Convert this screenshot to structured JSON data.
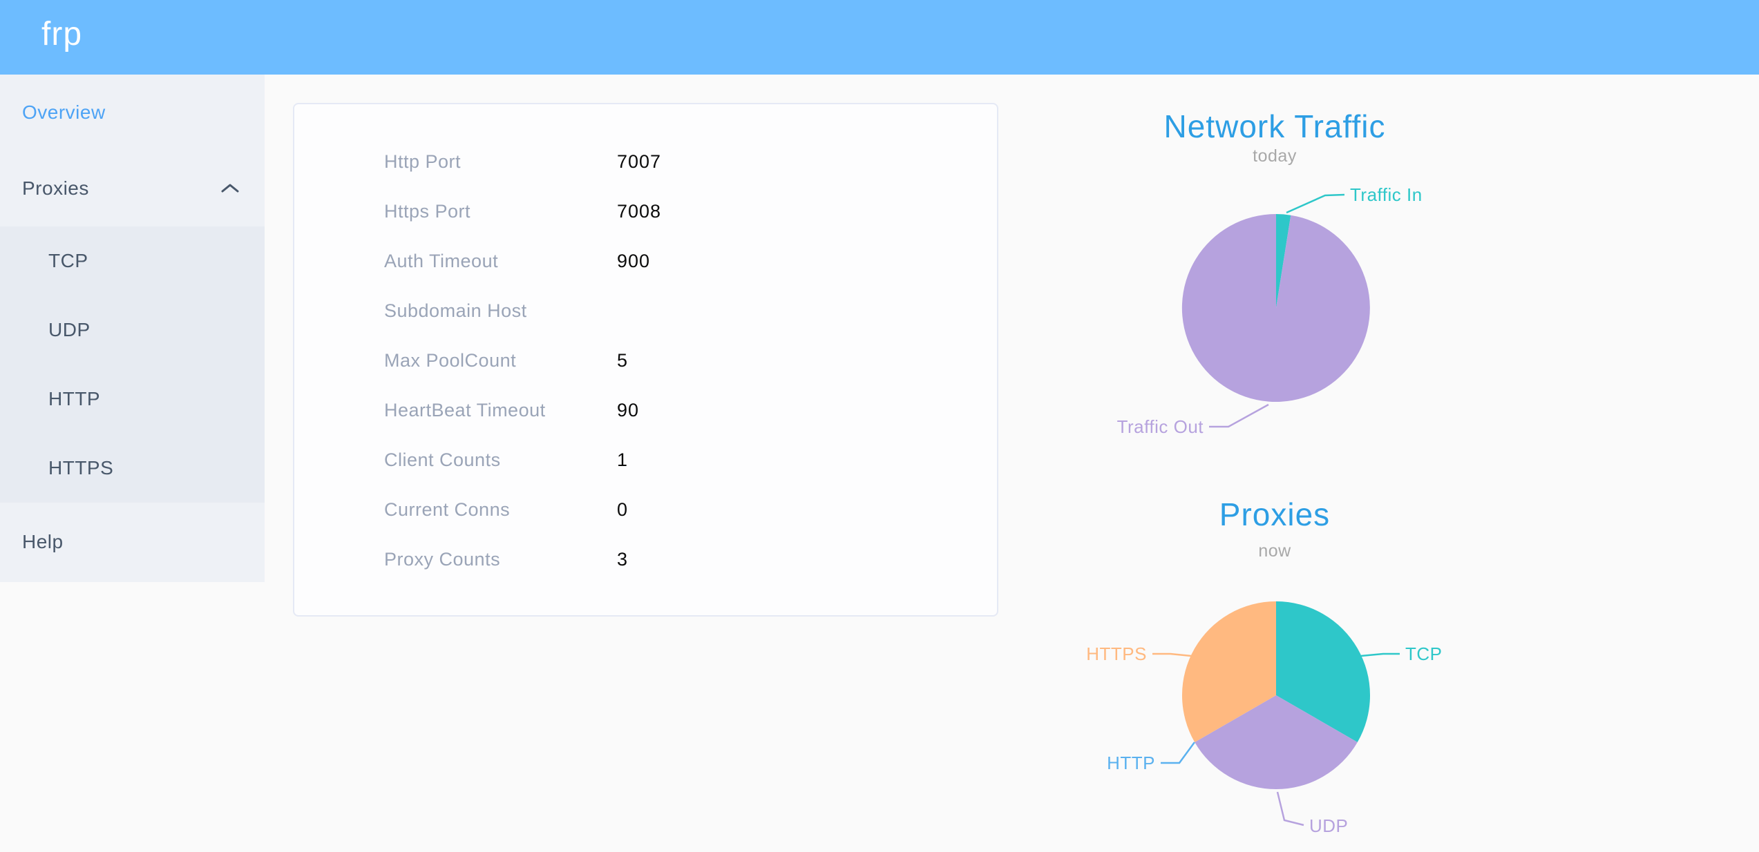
{
  "header": {
    "logo": "frp"
  },
  "colors": {
    "header_bg": "#6dbcff",
    "sidebar_bg": "#eef1f6",
    "submenu_bg": "#e7ebf2",
    "active_item": "#4da3f5",
    "chart_title": "#2d9ee4",
    "teal": "#2EC7C9",
    "purple": "#B6A2DE",
    "blue": "#5AB1EF",
    "orange": "#FFB980"
  },
  "sidebar": {
    "items": [
      {
        "label": "Overview",
        "active": true
      },
      {
        "label": "Proxies",
        "expanded": true,
        "children": [
          "TCP",
          "UDP",
          "HTTP",
          "HTTPS"
        ]
      },
      {
        "label": "Help"
      }
    ]
  },
  "server_info": {
    "rows": [
      {
        "label": "Http Port",
        "value": "7007"
      },
      {
        "label": "Https Port",
        "value": "7008"
      },
      {
        "label": "Auth Timeout",
        "value": "900"
      },
      {
        "label": "Subdomain Host",
        "value": ""
      },
      {
        "label": "Max PoolCount",
        "value": "5"
      },
      {
        "label": "HeartBeat Timeout",
        "value": "90"
      },
      {
        "label": "Client Counts",
        "value": "1"
      },
      {
        "label": "Current Conns",
        "value": "0"
      },
      {
        "label": "Proxy Counts",
        "value": "3"
      }
    ]
  },
  "chart_data": [
    {
      "type": "pie",
      "title": "Network Traffic",
      "subtitle": "today",
      "legend_position": "outside-callout",
      "slices": [
        {
          "label": "Traffic In",
          "percent": 2.5,
          "color": "#2EC7C9"
        },
        {
          "label": "Traffic Out",
          "percent": 97.5,
          "color": "#B6A2DE"
        }
      ]
    },
    {
      "type": "pie",
      "title": "Proxies",
      "subtitle": "now",
      "legend_position": "outside-callout",
      "slices": [
        {
          "label": "TCP",
          "value": 1,
          "percent": 33.3,
          "color": "#2EC7C9"
        },
        {
          "label": "UDP",
          "value": 1,
          "percent": 33.3,
          "color": "#B6A2DE"
        },
        {
          "label": "HTTP",
          "value": 0,
          "percent": 0,
          "color": "#5AB1EF"
        },
        {
          "label": "HTTPS",
          "value": 1,
          "percent": 33.3,
          "color": "#FFB980"
        }
      ]
    }
  ]
}
